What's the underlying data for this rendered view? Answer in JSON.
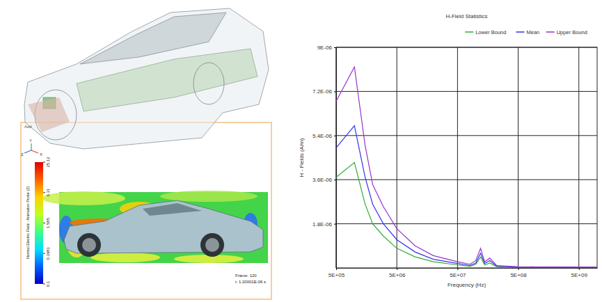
{
  "chart_data": {
    "type": "line",
    "title": "H-Field Statistics",
    "x_label": "Frequency (Hz)",
    "y_label": "H - Fields (A/m)",
    "x": [
      500000,
      1000000,
      1500000,
      2000000,
      3000000,
      5000000,
      10000000,
      20000000,
      50000000,
      80000000,
      100000000,
      120000000,
      140000000,
      170000000,
      220000000,
      500000000,
      1000000000,
      10000000000
    ],
    "series": [
      {
        "name": "Lower Bound",
        "color": "#33aa33",
        "values": [
          3.7e-06,
          4.3e-06,
          2.6e-06,
          1.8e-06,
          1.3e-06,
          8e-07,
          4.5e-07,
          2.5e-07,
          1.2e-07,
          7e-08,
          1.5e-07,
          4.5e-07,
          1.2e-07,
          2e-07,
          5e-08,
          2e-08,
          2e-08,
          1e-08
        ]
      },
      {
        "name": "Mean",
        "color": "#3333ee",
        "values": [
          4.9e-06,
          5.8e-06,
          3.7e-06,
          2.6e-06,
          1.8e-06,
          1.15e-06,
          6.5e-07,
          3.5e-07,
          1.8e-07,
          1e-07,
          2e-07,
          6e-07,
          1.8e-07,
          3e-07,
          7e-08,
          3e-08,
          3e-08,
          2e-08
        ]
      },
      {
        "name": "Upper Bound",
        "color": "#9933cc",
        "values": [
          6.8e-06,
          8.2e-06,
          5e-06,
          3.4e-06,
          2.5e-06,
          1.6e-06,
          9e-07,
          5e-07,
          2.5e-07,
          1.5e-07,
          3e-07,
          8e-07,
          2.5e-07,
          4e-07,
          1e-07,
          5e-08,
          4e-08,
          3e-08
        ]
      }
    ],
    "xlim": [
      500000,
      10000000000
    ],
    "xticks": [
      {
        "value": 500000,
        "label": "5E+05"
      },
      {
        "value": 5000000,
        "label": "5E+06"
      },
      {
        "value": 50000000,
        "label": "5E+07"
      },
      {
        "value": 500000000,
        "label": "5E+08"
      },
      {
        "value": 5000000000,
        "label": "5E+09"
      }
    ],
    "ylim": [
      0,
      9e-06
    ],
    "yticks": [
      {
        "value": 1.8e-06,
        "label": "1.8E-06"
      },
      {
        "value": 3.6e-06,
        "label": "3.6E-06"
      },
      {
        "value": 5.4e-06,
        "label": "5.4E-06"
      },
      {
        "value": 7.2e-06,
        "label": "7.2E-06"
      },
      {
        "value": 9e-06,
        "label": "9E-06"
      }
    ],
    "log": "x",
    "grid": true,
    "legend": "top-right"
  },
  "field_plot": {
    "tab": "Add",
    "triad_labels": [
      "Z",
      "Y",
      "X"
    ],
    "colorbar_title": "Normal Electric Field - Animation Probe (2)",
    "colorbar_range": [
      0.1,
      25.12
    ],
    "colorbar_ticks": [
      25.12,
      6.31,
      1.585,
      0.3981,
      0.1
    ],
    "frame": "Frame: 120",
    "time": "t: 1.20001E-06 s"
  }
}
